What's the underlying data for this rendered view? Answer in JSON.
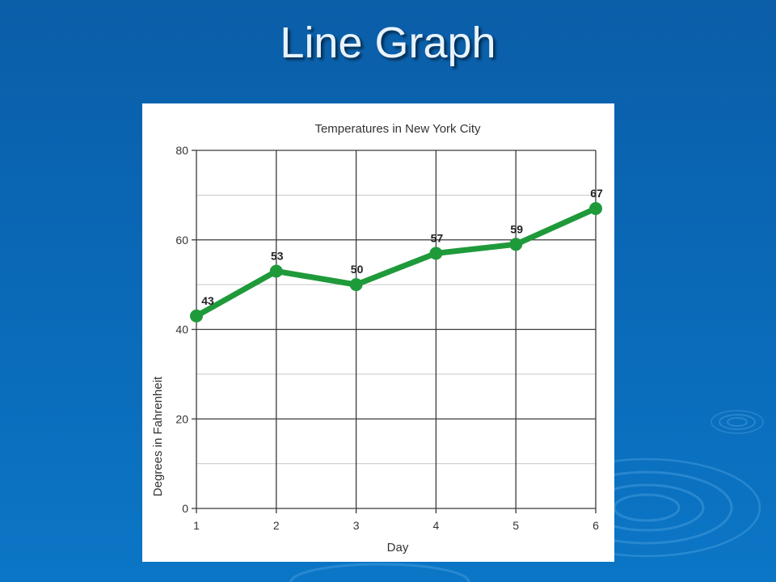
{
  "slide": {
    "title": "Line Graph",
    "background_color": "#0a68b6"
  },
  "chart_data": {
    "type": "line",
    "title": "Temperatures in New York City",
    "xlabel": "Day",
    "ylabel": "Degrees in Fahrenheit",
    "x": [
      1,
      2,
      3,
      4,
      5,
      6
    ],
    "x_tick_labels": [
      "1",
      "2",
      "3",
      "4",
      "5",
      "6"
    ],
    "y_tick_labels": [
      "0",
      "20",
      "40",
      "60",
      "80"
    ],
    "series": [
      {
        "values": [
          43,
          53,
          50,
          57,
          59,
          67
        ],
        "data_labels": [
          "43",
          "53",
          "50",
          "57",
          "59",
          "67"
        ],
        "color": "#1f9a3a"
      }
    ],
    "xlim": [
      1,
      6
    ],
    "ylim": [
      0,
      80
    ],
    "grid": true,
    "legend": "none"
  }
}
